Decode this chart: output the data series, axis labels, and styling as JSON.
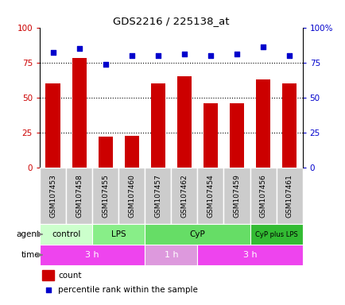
{
  "title": "GDS2216 / 225138_at",
  "samples": [
    "GSM107453",
    "GSM107458",
    "GSM107455",
    "GSM107460",
    "GSM107457",
    "GSM107462",
    "GSM107454",
    "GSM107459",
    "GSM107456",
    "GSM107461"
  ],
  "count_values": [
    60,
    78,
    22,
    23,
    60,
    65,
    46,
    46,
    63,
    60
  ],
  "percentile_values": [
    82,
    85,
    74,
    80,
    80,
    81,
    80,
    81,
    86,
    80
  ],
  "bar_color": "#cc0000",
  "dot_color": "#0000cc",
  "agent_groups": [
    {
      "label": "control",
      "start": 0,
      "end": 2,
      "color": "#ccffcc"
    },
    {
      "label": "LPS",
      "start": 2,
      "end": 4,
      "color": "#88ee88"
    },
    {
      "label": "CyP",
      "start": 4,
      "end": 8,
      "color": "#66dd66"
    },
    {
      "label": "CyP plus LPS",
      "start": 8,
      "end": 10,
      "color": "#33bb33"
    }
  ],
  "time_groups": [
    {
      "label": "3 h",
      "start": 0,
      "end": 4,
      "color": "#ee44ee"
    },
    {
      "label": "1 h",
      "start": 4,
      "end": 6,
      "color": "#dd99dd"
    },
    {
      "label": "3 h",
      "start": 6,
      "end": 10,
      "color": "#ee44ee"
    }
  ],
  "ylim": [
    0,
    100
  ],
  "yticks": [
    0,
    25,
    50,
    75,
    100
  ],
  "grid_lines": [
    25,
    50,
    75
  ],
  "legend_count_label": "count",
  "legend_pct_label": "percentile rank within the sample",
  "agent_label": "agent",
  "time_label": "time",
  "sample_box_color": "#cccccc",
  "sample_box_edge": "#aaaaaa"
}
